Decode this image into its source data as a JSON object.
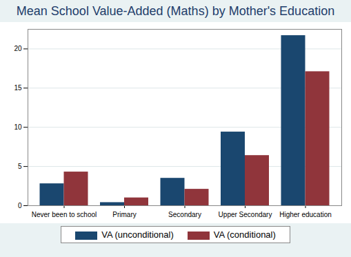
{
  "chart_data": {
    "type": "bar",
    "title": "Mean School Value-Added (Maths) by Mother's Education",
    "categories": [
      "Never been to school",
      "Primary",
      "Secondary",
      "Upper Secondary",
      "Higher education"
    ],
    "series": [
      {
        "name": "VA (unconditional)",
        "color": "#1a476f",
        "values": [
          2.8,
          0.4,
          3.5,
          9.4,
          21.7
        ]
      },
      {
        "name": "VA (conditional)",
        "color": "#90353b",
        "values": [
          4.3,
          1.0,
          2.1,
          6.4,
          17.1
        ]
      }
    ],
    "ylim": [
      0,
      22.5
    ],
    "yticks": [
      0,
      5,
      10,
      15,
      20
    ],
    "grid": true,
    "legend": "bottom"
  }
}
